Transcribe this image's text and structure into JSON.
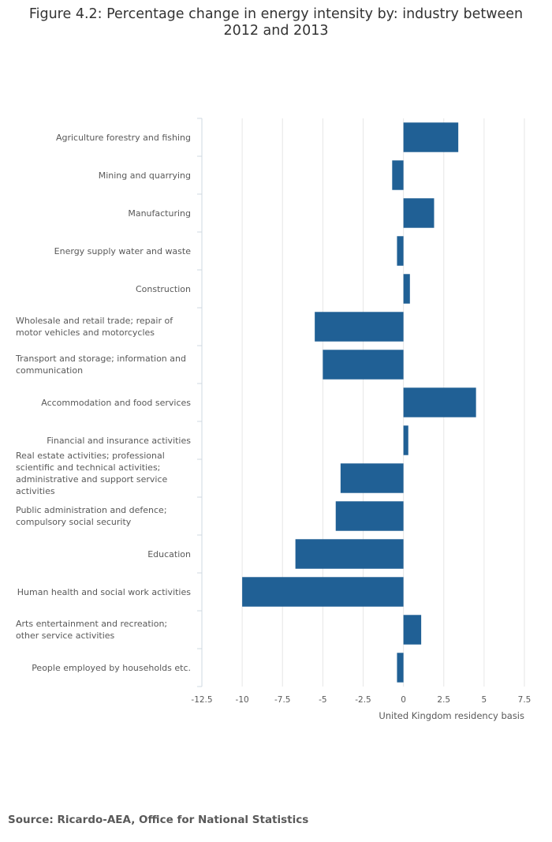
{
  "chart_data": {
    "type": "bar",
    "orientation": "horizontal",
    "title": "Figure 4.2: Percentage change in energy intensity by: industry between 2012 and 2013",
    "xlabel": "United Kingdom residency basis",
    "ylabel": "",
    "xlim": [
      -12.5,
      7.5
    ],
    "xticks": [
      -12.5,
      -10,
      -7.5,
      -5,
      -2.5,
      0,
      2.5,
      5,
      7.5
    ],
    "xtick_labels": [
      "-12.5",
      "-10",
      "-7.5",
      "-5",
      "-2.5",
      "0",
      "2.5",
      "5",
      "7.5"
    ],
    "grid": "vertical",
    "bar_color": "#206095",
    "categories": [
      "Agriculture forestry and fishing",
      "Mining and quarrying",
      "Manufacturing",
      "Energy supply water and waste",
      "Construction",
      "Wholesale and retail trade; repair of motor vehicles and motorcycles",
      "Transport and storage; information and communication",
      "Accommodation and food services",
      "Financial and insurance activities",
      "Real estate activities; professional scientific and technical activities; administrative and support service activities",
      "Public administration and defence; compulsory social security",
      "Education",
      "Human health and social work activities",
      "Arts entertainment and recreation; other service activities",
      "People employed by households etc."
    ],
    "values": [
      3.4,
      -0.7,
      1.9,
      -0.4,
      0.4,
      -5.5,
      -5.0,
      4.5,
      0.3,
      -3.9,
      -4.2,
      -6.7,
      -10.0,
      1.1,
      -0.4
    ]
  },
  "source": "Source: Ricardo-AEA, Office for National Statistics"
}
